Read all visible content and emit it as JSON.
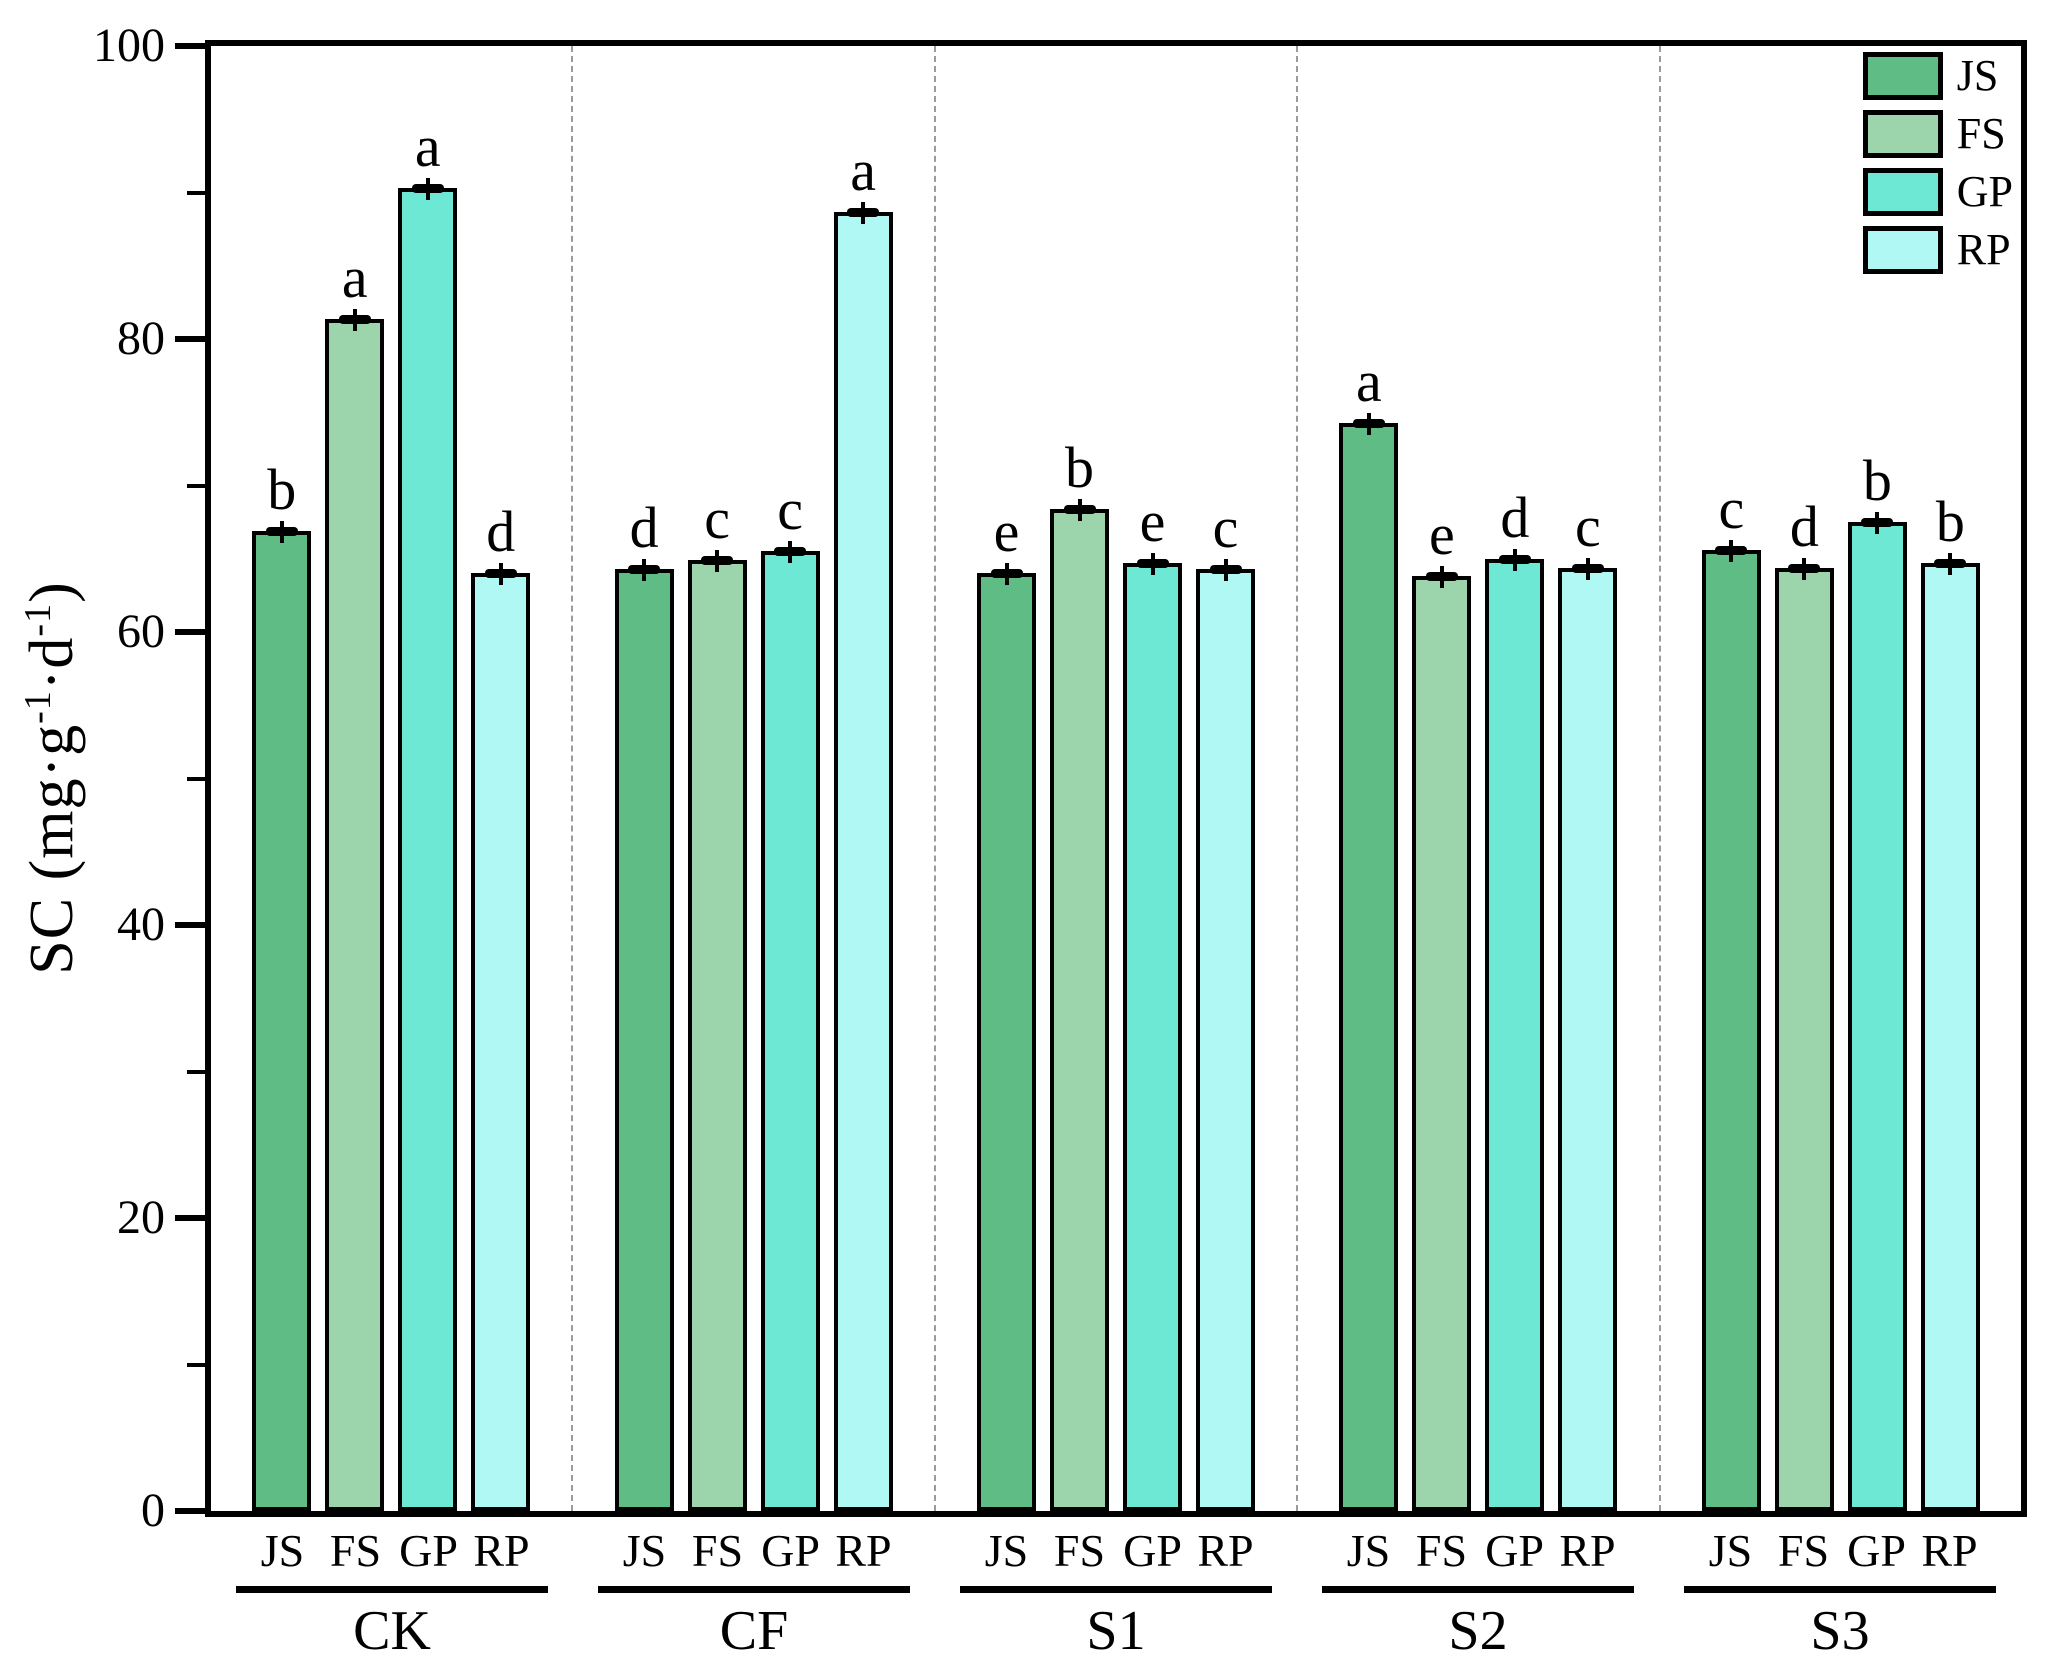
{
  "figure": {
    "ylabel_parts": {
      "p1": "SC (mg·g",
      "s1": "-1",
      "p2": "·d",
      "s2": "-1",
      "p3": ")"
    }
  },
  "chart_data": {
    "type": "bar",
    "title": "",
    "xlabel": "",
    "ylabel": "SC (mg·g-1·d-1)",
    "ylim": [
      0,
      100
    ],
    "yticks_major": [
      0,
      20,
      40,
      60,
      80,
      100
    ],
    "yticks_minor": [
      10,
      30,
      50,
      70,
      90
    ],
    "grid": false,
    "group_separators": "dashed",
    "legend_position": "top-right-inside",
    "categories": [
      "CK",
      "CF",
      "S1",
      "S2",
      "S3"
    ],
    "bar_sublabels": [
      "JS",
      "FS",
      "GP",
      "RP"
    ],
    "series": [
      {
        "name": "JS",
        "color": "#5fbc84",
        "values": [
          66.9,
          64.3,
          64.0,
          74.3,
          65.6
        ],
        "letters": [
          "b",
          "d",
          "e",
          "a",
          "c"
        ]
      },
      {
        "name": "FS",
        "color": "#9cd5ab",
        "values": [
          81.4,
          64.9,
          68.4,
          63.8,
          64.4
        ],
        "letters": [
          "a",
          "c",
          "b",
          "e",
          "d"
        ]
      },
      {
        "name": "GP",
        "color": "#6ce8d4",
        "values": [
          90.3,
          65.5,
          64.7,
          65.0,
          67.5
        ],
        "letters": [
          "a",
          "c",
          "e",
          "d",
          "b"
        ]
      },
      {
        "name": "RP",
        "color": "#aff8f4",
        "values": [
          64.0,
          88.7,
          64.3,
          64.4,
          64.7
        ],
        "letters": [
          "d",
          "a",
          "c",
          "c",
          "b"
        ]
      }
    ],
    "error_bar": 0.35,
    "legend": [
      "JS",
      "FS",
      "GP",
      "RP"
    ]
  }
}
